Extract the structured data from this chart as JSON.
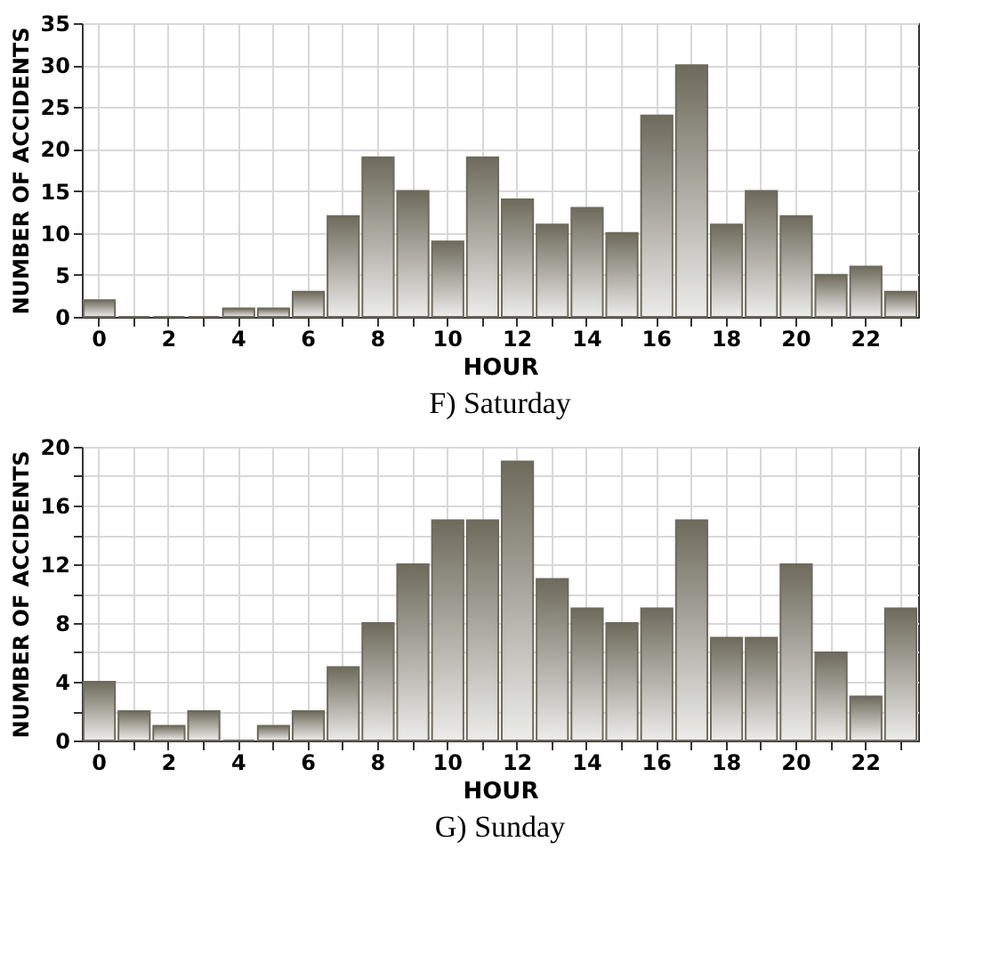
{
  "chart_data": [
    {
      "type": "bar",
      "title": "F) Saturday",
      "xlabel": "HOUR",
      "ylabel": "NUMBER OF ACCIDENTS",
      "categories": [
        "0",
        null,
        "2",
        null,
        "4",
        null,
        "6",
        null,
        "8",
        null,
        "10",
        null,
        "12",
        null,
        "14",
        null,
        "16",
        null,
        "18",
        null,
        "20",
        null,
        "22",
        null
      ],
      "values": [
        2,
        0,
        0,
        0,
        1,
        1,
        3,
        12,
        19,
        15,
        9,
        19,
        14,
        11,
        13,
        10,
        24,
        30,
        11,
        15,
        12,
        5,
        6,
        3
      ],
      "color": "#6e6a5c",
      "ylim": [
        0,
        35
      ],
      "yticks": [
        0,
        5,
        10,
        15,
        20,
        25,
        30,
        35
      ],
      "grid": true
    },
    {
      "type": "bar",
      "title": "G) Sunday",
      "xlabel": "HOUR",
      "ylabel": "NUMBER OF ACCIDENTS",
      "categories": [
        "0",
        null,
        "2",
        null,
        "4",
        null,
        "6",
        null,
        "8",
        null,
        "10",
        null,
        "12",
        null,
        "14",
        null,
        "16",
        null,
        "18",
        null,
        "20",
        null,
        "22",
        null
      ],
      "values": [
        4,
        2,
        1,
        2,
        0,
        1,
        2,
        5,
        8,
        12,
        15,
        15,
        19,
        11,
        9,
        8,
        9,
        15,
        7,
        7,
        12,
        6,
        3,
        9
      ],
      "color": "#6e6a5c",
      "ylim": [
        0,
        20
      ],
      "yticks": [
        0,
        {
          "value": 2,
          "label": null
        },
        4,
        {
          "value": 6,
          "label": null
        },
        8,
        {
          "value": 10,
          "label": null
        },
        12,
        {
          "value": 14,
          "label": null
        },
        16,
        {
          "value": 18,
          "label": null
        },
        20
      ],
      "grid": true
    }
  ]
}
